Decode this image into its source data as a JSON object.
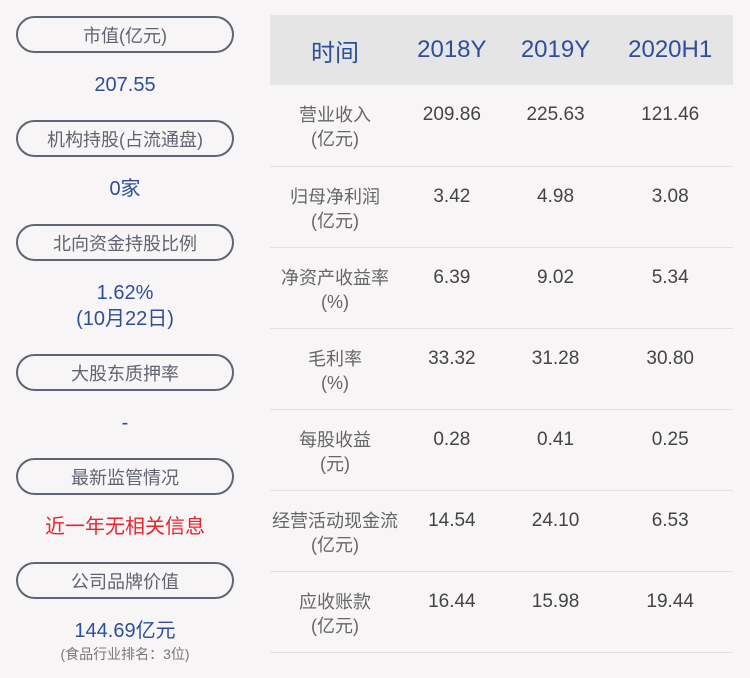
{
  "left": {
    "items": [
      {
        "label": "市值(亿元)",
        "value": "207.55"
      },
      {
        "label": "机构持股(占流通盘)",
        "value": "0家"
      },
      {
        "label": "北向资金持股比例",
        "value": "1.62%",
        "value2": "(10月22日)"
      },
      {
        "label": "大股东质押率",
        "value": "-"
      },
      {
        "label": "最新监管情况",
        "value": "近一年无相关信息"
      },
      {
        "label": "公司品牌价值",
        "value": "144.69亿元",
        "note": "(食品行业排名：3位)"
      }
    ]
  },
  "table": {
    "headers": [
      "时间",
      "2018Y",
      "2019Y",
      "2020H1"
    ],
    "rows": [
      {
        "label": "营业收入",
        "unit": "(亿元)",
        "values": [
          "209.86",
          "225.63",
          "121.46"
        ]
      },
      {
        "label": "归母净利润",
        "unit": "(亿元)",
        "values": [
          "3.42",
          "4.98",
          "3.08"
        ]
      },
      {
        "label": "净资产收益率",
        "unit": "(%)",
        "values": [
          "6.39",
          "9.02",
          "5.34"
        ]
      },
      {
        "label": "毛利率",
        "unit": "(%)",
        "values": [
          "33.32",
          "31.28",
          "30.80"
        ]
      },
      {
        "label": "每股收益",
        "unit": "(元)",
        "values": [
          "0.28",
          "0.41",
          "0.25"
        ]
      },
      {
        "label": "经营活动现金流",
        "unit": "(亿元)",
        "values": [
          "14.54",
          "24.10",
          "6.53"
        ]
      },
      {
        "label": "应收账款",
        "unit": "(亿元)",
        "values": [
          "16.44",
          "15.98",
          "19.44"
        ]
      }
    ]
  },
  "colors": {
    "accent": "#2d4f9a",
    "alert": "#e3262e",
    "header_bg": "#e5e5e5"
  }
}
